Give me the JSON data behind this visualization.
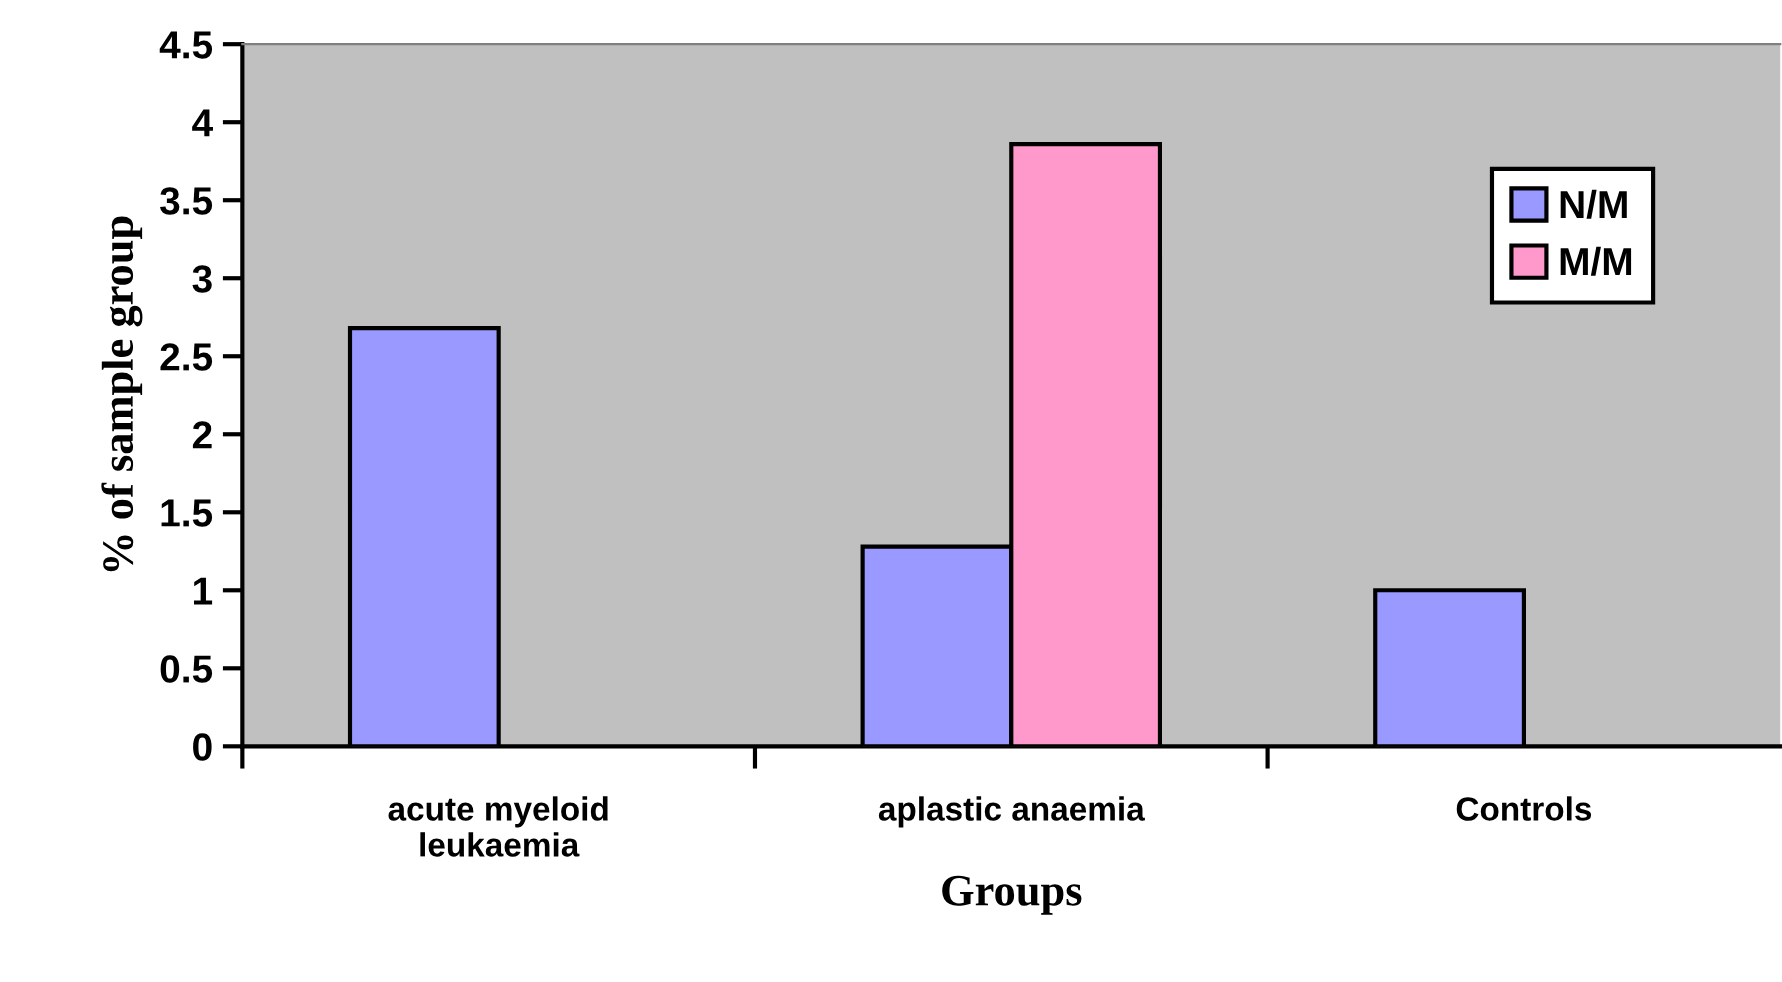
{
  "chart_data": {
    "type": "bar",
    "xlabel": "Groups",
    "ylabel": "% of sample group",
    "categories": [
      "acute myeloid\nleukaemia",
      "aplastic anaemia",
      "Controls"
    ],
    "series": [
      {
        "name": "N/M",
        "color": "#9999ff",
        "values": [
          2.68,
          1.28,
          1.0
        ]
      },
      {
        "name": "M/M",
        "color": "#ff99cc",
        "values": [
          null,
          3.86,
          null
        ]
      }
    ],
    "ylim": [
      0,
      4.5
    ],
    "yticks": [
      0,
      0.5,
      1,
      1.5,
      2,
      2.5,
      3,
      3.5,
      4,
      4.5
    ],
    "grid": false,
    "legend": "top right"
  }
}
